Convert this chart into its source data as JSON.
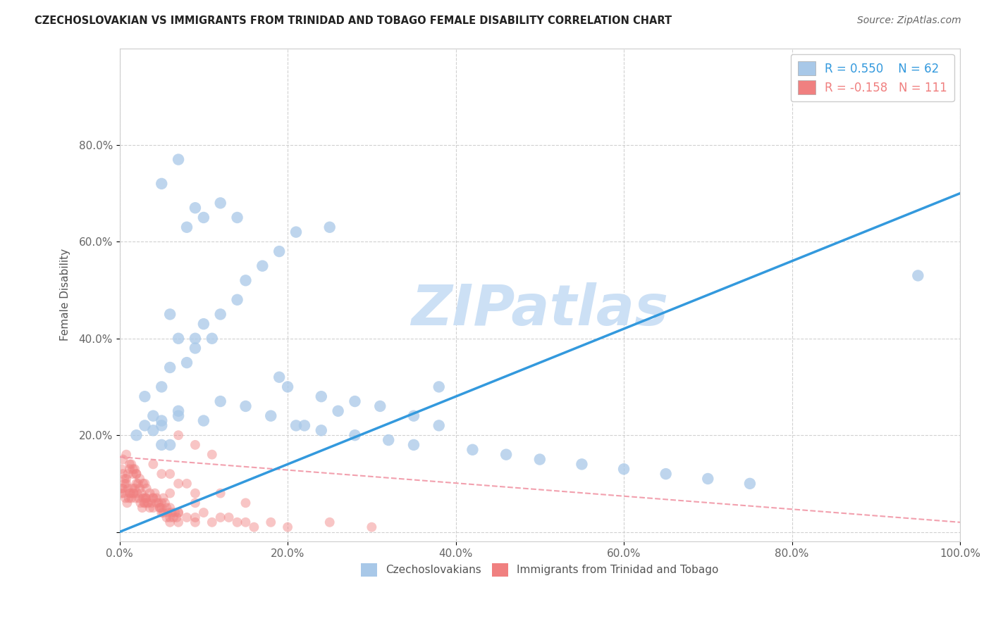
{
  "title": "CZECHOSLOVAKIAN VS IMMIGRANTS FROM TRINIDAD AND TOBAGO FEMALE DISABILITY CORRELATION CHART",
  "source_text": "Source: ZipAtlas.com",
  "ylabel": "Female Disability",
  "xlim": [
    0,
    1.0
  ],
  "ylim": [
    -0.02,
    1.0
  ],
  "xticks": [
    0.0,
    0.2,
    0.4,
    0.6,
    0.8,
    1.0
  ],
  "yticks": [
    0.0,
    0.2,
    0.4,
    0.6,
    0.8
  ],
  "xticklabels": [
    "0.0%",
    "20.0%",
    "40.0%",
    "60.0%",
    "80.0%",
    "100.0%"
  ],
  "yticklabels": [
    "",
    "20.0%",
    "40.0%",
    "60.0%",
    "80.0%"
  ],
  "blue_R": 0.55,
  "blue_N": 62,
  "pink_R": -0.158,
  "pink_N": 111,
  "blue_color": "#a8c8e8",
  "pink_color": "#f08080",
  "blue_line_color": "#3399dd",
  "pink_line_color": "#f090a0",
  "watermark": "ZIPatlas",
  "watermark_color": "#cce0f5",
  "background_color": "#ffffff",
  "grid_color": "#cccccc",
  "blue_line_x0": 0.0,
  "blue_line_y0": 0.0,
  "blue_line_x1": 1.0,
  "blue_line_y1": 0.7,
  "pink_line_x0": 0.0,
  "pink_line_y0": 0.155,
  "pink_line_x1": 1.0,
  "pink_line_y1": 0.02,
  "blue_scatter_x": [
    0.02,
    0.03,
    0.04,
    0.05,
    0.03,
    0.05,
    0.06,
    0.07,
    0.05,
    0.06,
    0.08,
    0.07,
    0.06,
    0.09,
    0.1,
    0.09,
    0.11,
    0.12,
    0.14,
    0.15,
    0.17,
    0.19,
    0.08,
    0.1,
    0.09,
    0.14,
    0.12,
    0.2,
    0.19,
    0.22,
    0.24,
    0.26,
    0.28,
    0.31,
    0.35,
    0.38,
    0.04,
    0.05,
    0.07,
    0.1,
    0.12,
    0.15,
    0.18,
    0.21,
    0.24,
    0.28,
    0.32,
    0.35,
    0.42,
    0.46,
    0.5,
    0.55,
    0.6,
    0.65,
    0.7,
    0.75,
    0.95,
    0.38,
    0.05,
    0.07,
    0.21,
    0.25
  ],
  "blue_scatter_y": [
    0.2,
    0.22,
    0.24,
    0.18,
    0.28,
    0.22,
    0.18,
    0.24,
    0.3,
    0.34,
    0.35,
    0.4,
    0.45,
    0.4,
    0.43,
    0.38,
    0.4,
    0.45,
    0.48,
    0.52,
    0.55,
    0.58,
    0.63,
    0.65,
    0.67,
    0.65,
    0.68,
    0.3,
    0.32,
    0.22,
    0.28,
    0.25,
    0.27,
    0.26,
    0.24,
    0.22,
    0.21,
    0.23,
    0.25,
    0.23,
    0.27,
    0.26,
    0.24,
    0.22,
    0.21,
    0.2,
    0.19,
    0.18,
    0.17,
    0.16,
    0.15,
    0.14,
    0.13,
    0.12,
    0.11,
    0.1,
    0.53,
    0.3,
    0.72,
    0.77,
    0.62,
    0.63
  ],
  "pink_scatter_x": [
    0.002,
    0.004,
    0.006,
    0.008,
    0.01,
    0.012,
    0.014,
    0.016,
    0.018,
    0.02,
    0.022,
    0.024,
    0.026,
    0.028,
    0.03,
    0.032,
    0.034,
    0.036,
    0.038,
    0.04,
    0.042,
    0.044,
    0.046,
    0.048,
    0.05,
    0.052,
    0.054,
    0.056,
    0.058,
    0.06,
    0.062,
    0.064,
    0.066,
    0.068,
    0.07,
    0.004,
    0.008,
    0.012,
    0.016,
    0.02,
    0.024,
    0.028,
    0.032,
    0.036,
    0.04,
    0.044,
    0.048,
    0.052,
    0.056,
    0.06,
    0.002,
    0.004,
    0.006,
    0.008,
    0.01,
    0.012,
    0.014,
    0.016,
    0.018,
    0.02,
    0.003,
    0.005,
    0.007,
    0.009,
    0.011,
    0.013,
    0.015,
    0.017,
    0.019,
    0.021,
    0.023,
    0.025,
    0.027,
    0.029,
    0.031,
    0.033,
    0.04,
    0.05,
    0.06,
    0.07,
    0.08,
    0.09,
    0.1,
    0.12,
    0.14,
    0.16,
    0.18,
    0.2,
    0.25,
    0.3,
    0.07,
    0.09,
    0.11,
    0.04,
    0.06,
    0.08,
    0.12,
    0.15,
    0.05,
    0.07,
    0.09,
    0.03,
    0.05,
    0.07,
    0.09,
    0.11,
    0.13,
    0.15,
    0.03,
    0.06,
    0.09
  ],
  "pink_scatter_y": [
    0.08,
    0.09,
    0.1,
    0.11,
    0.12,
    0.13,
    0.14,
    0.12,
    0.13,
    0.12,
    0.1,
    0.09,
    0.08,
    0.07,
    0.06,
    0.07,
    0.06,
    0.05,
    0.06,
    0.07,
    0.08,
    0.07,
    0.06,
    0.05,
    0.06,
    0.07,
    0.06,
    0.05,
    0.04,
    0.05,
    0.04,
    0.03,
    0.04,
    0.03,
    0.04,
    0.15,
    0.16,
    0.14,
    0.13,
    0.12,
    0.11,
    0.1,
    0.09,
    0.08,
    0.07,
    0.06,
    0.05,
    0.04,
    0.03,
    0.02,
    0.13,
    0.12,
    0.11,
    0.1,
    0.09,
    0.08,
    0.07,
    0.08,
    0.09,
    0.1,
    0.09,
    0.08,
    0.07,
    0.06,
    0.07,
    0.08,
    0.09,
    0.08,
    0.07,
    0.08,
    0.07,
    0.06,
    0.05,
    0.06,
    0.07,
    0.06,
    0.05,
    0.04,
    0.03,
    0.02,
    0.03,
    0.02,
    0.04,
    0.03,
    0.02,
    0.01,
    0.02,
    0.01,
    0.02,
    0.01,
    0.2,
    0.18,
    0.16,
    0.14,
    0.12,
    0.1,
    0.08,
    0.06,
    0.12,
    0.1,
    0.08,
    0.07,
    0.05,
    0.04,
    0.03,
    0.02,
    0.03,
    0.02,
    0.1,
    0.08,
    0.06
  ]
}
